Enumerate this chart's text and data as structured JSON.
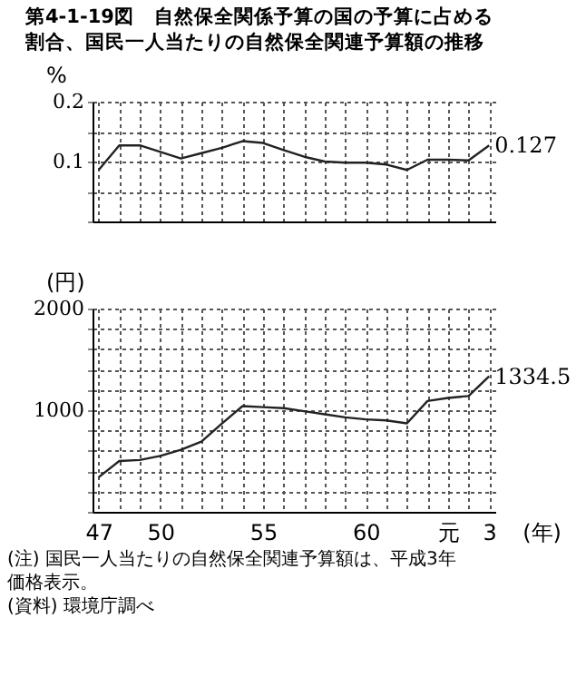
{
  "chart_data": [
    {
      "type": "line",
      "title": "第4-1-19図　自然保全関係予算の国の予算に占める割合、国民一人当たりの自然保全関連予算額の推移",
      "ylabel": "%",
      "categories": [
        null,
        null,
        null,
        null,
        null,
        null,
        null,
        null,
        null,
        null,
        null,
        null,
        null,
        null,
        null,
        null,
        null,
        null,
        null,
        null
      ],
      "series": [
        {
          "color": "#222222",
          "values": [
            0.086,
            0.127,
            0.127,
            0.116,
            0.105,
            0.114,
            0.123,
            0.134,
            0.131,
            0.119,
            0.108,
            0.1,
            0.098,
            0.098,
            0.095,
            0.086,
            0.103,
            0.103,
            0.102,
            0.127
          ],
          "value_labels": [
            null,
            null,
            null,
            null,
            null,
            null,
            null,
            null,
            null,
            null,
            null,
            null,
            null,
            null,
            null,
            null,
            null,
            null,
            null,
            "0.127"
          ]
        }
      ],
      "ylim": [
        0,
        0.2
      ],
      "yticks": [
        {
          "value": 0,
          "label": null
        },
        {
          "value": 0.05,
          "label": null
        },
        0.1,
        {
          "value": 0.15,
          "label": null
        },
        0.2
      ],
      "grid": true,
      "marker": "none",
      "line_style": "solid"
    },
    {
      "type": "line",
      "ylabel": "(円)",
      "xlabel": "(年)",
      "categories": [
        "47",
        null,
        null,
        "50",
        null,
        null,
        null,
        null,
        "55",
        null,
        null,
        null,
        null,
        "60",
        null,
        null,
        null,
        "元",
        null,
        "3"
      ],
      "series": [
        {
          "color": "#222222",
          "values": [
            340,
            500,
            510,
            550,
            610,
            690,
            870,
            1040,
            1030,
            1020,
            990,
            960,
            930,
            910,
            900,
            870,
            1090,
            1120,
            1140,
            1334.5
          ],
          "value_labels": [
            null,
            null,
            null,
            null,
            null,
            null,
            null,
            null,
            null,
            null,
            null,
            null,
            null,
            null,
            null,
            null,
            null,
            null,
            null,
            "1334.5"
          ]
        }
      ],
      "ylim": [
        0,
        2000
      ],
      "yticks": [
        {
          "value": 0,
          "label": null
        },
        {
          "value": 200,
          "label": null
        },
        {
          "value": 400,
          "label": null
        },
        {
          "value": 600,
          "label": null
        },
        {
          "value": 800,
          "label": null
        },
        1000,
        {
          "value": 1200,
          "label": null
        },
        {
          "value": 1400,
          "label": null
        },
        {
          "value": 1600,
          "label": null
        },
        {
          "value": 1800,
          "label": null
        },
        2000
      ],
      "grid": true,
      "marker": "none",
      "line_style": "solid",
      "annotations": [
        "(注) 国民一人当たりの自然保全関連予算額は、平成3年価格表示。",
        "(資料) 環境庁調べ"
      ]
    }
  ]
}
